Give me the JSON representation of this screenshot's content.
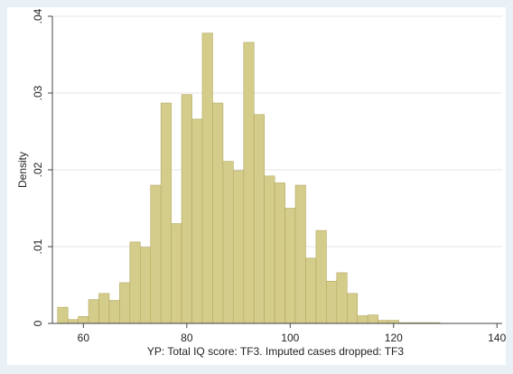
{
  "chart_data": {
    "type": "bar",
    "xlabel": "YP: Total IQ score: TF3. Imputed cases dropped: TF3",
    "ylabel": "Density",
    "xlim": [
      54,
      141
    ],
    "ylim": [
      0,
      0.04
    ],
    "x_ticks": [
      60,
      80,
      100,
      120,
      140
    ],
    "y_ticks": [
      0,
      0.01,
      0.02,
      0.03,
      0.04
    ],
    "x_tick_labels": [
      "60",
      "80",
      "100",
      "120",
      "140"
    ],
    "y_tick_labels": [
      "0",
      ".01",
      ".02",
      ".03",
      ".04"
    ],
    "grid": true,
    "bin_width": 2,
    "bin_starts": [
      55,
      57,
      59,
      61,
      63,
      65,
      67,
      69,
      71,
      73,
      75,
      77,
      79,
      81,
      83,
      85,
      87,
      89,
      91,
      93,
      95,
      97,
      99,
      101,
      103,
      105,
      107,
      109,
      111,
      113,
      115,
      117,
      119,
      121,
      123,
      125,
      127,
      129,
      131,
      133,
      135,
      137
    ],
    "values": [
      0.0021,
      0.0005,
      0.0009,
      0.0031,
      0.0039,
      0.003,
      0.0053,
      0.0106,
      0.0099,
      0.018,
      0.0287,
      0.013,
      0.0298,
      0.0266,
      0.0378,
      0.0287,
      0.0211,
      0.0199,
      0.0366,
      0.0272,
      0.0192,
      0.0183,
      0.015,
      0.018,
      0.0085,
      0.0121,
      0.0055,
      0.0066,
      0.0039,
      0.001,
      0.0011,
      0.0004,
      0.0004,
      0.0001,
      0.0001,
      0.0001,
      0.0001,
      0.0,
      0.0,
      0.0,
      0.0,
      0.0
    ],
    "bar_fill": "#d4cc8a",
    "bar_stroke": "#b3a85e",
    "background": "#e9f1f6",
    "plot_background": "#ffffff"
  }
}
